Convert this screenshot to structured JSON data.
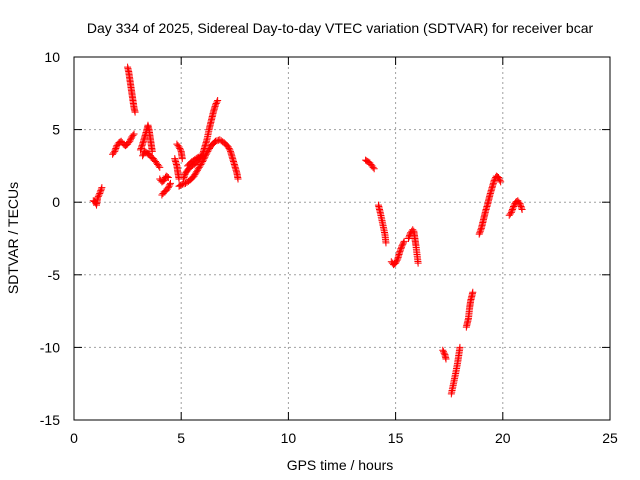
{
  "chart_data": {
    "type": "scatter",
    "title": "Day 334 of 2025, Sidereal Day-to-day VTEC variation (SDTVAR) for receiver bcar",
    "xlabel": "GPS time / hours",
    "ylabel": "SDTVAR / TECUs",
    "xlim": [
      0,
      25
    ],
    "ylim": [
      -15,
      10
    ],
    "xticks": [
      0,
      5,
      10,
      15,
      20,
      25
    ],
    "yticks": [
      -15,
      -10,
      -5,
      0,
      5,
      10
    ],
    "grid": true,
    "marker": "+",
    "series": [
      {
        "color": "#ff0000",
        "segments": [
          [
            [
              0.9,
              0.1
            ],
            [
              1.0,
              0.0
            ],
            [
              1.05,
              -0.2
            ],
            [
              1.1,
              0.3
            ],
            [
              1.2,
              0.6
            ],
            [
              1.3,
              1.0
            ]
          ],
          [
            [
              1.8,
              3.3
            ],
            [
              1.9,
              3.5
            ],
            [
              2.0,
              3.9
            ],
            [
              2.1,
              4.1
            ],
            [
              2.2,
              4.2
            ],
            [
              2.3,
              4.0
            ],
            [
              2.4,
              3.9
            ],
            [
              2.5,
              4.0
            ],
            [
              2.6,
              4.2
            ],
            [
              2.7,
              4.5
            ],
            [
              2.8,
              4.7
            ]
          ],
          [
            [
              2.5,
              9.3
            ],
            [
              2.55,
              9.0
            ],
            [
              2.6,
              8.5
            ],
            [
              2.65,
              8.0
            ],
            [
              2.7,
              7.5
            ],
            [
              2.75,
              7.0
            ],
            [
              2.8,
              6.5
            ],
            [
              2.85,
              6.2
            ]
          ],
          [
            [
              3.1,
              3.6
            ],
            [
              3.2,
              4.0
            ],
            [
              3.3,
              4.5
            ],
            [
              3.4,
              5.0
            ],
            [
              3.45,
              5.3
            ],
            [
              3.5,
              5.0
            ],
            [
              3.55,
              4.5
            ],
            [
              3.6,
              4.0
            ],
            [
              3.65,
              3.5
            ]
          ],
          [
            [
              3.2,
              3.2
            ],
            [
              3.3,
              3.5
            ],
            [
              3.4,
              3.4
            ],
            [
              3.5,
              3.3
            ],
            [
              3.6,
              3.1
            ],
            [
              3.7,
              3.0
            ],
            [
              3.8,
              2.8
            ],
            [
              3.9,
              2.6
            ],
            [
              4.0,
              2.4
            ]
          ],
          [
            [
              4.0,
              1.6
            ],
            [
              4.1,
              1.4
            ],
            [
              4.2,
              1.5
            ],
            [
              4.3,
              1.8
            ],
            [
              4.4,
              1.7
            ]
          ],
          [
            [
              4.1,
              0.5
            ],
            [
              4.2,
              0.7
            ],
            [
              4.3,
              0.8
            ],
            [
              4.4,
              1.0
            ],
            [
              4.5,
              1.3
            ]
          ],
          [
            [
              4.7,
              3.0
            ],
            [
              4.8,
              2.5
            ],
            [
              4.85,
              2.0
            ],
            [
              4.9,
              1.6
            ]
          ],
          [
            [
              4.8,
              4.0
            ],
            [
              4.9,
              3.8
            ],
            [
              5.0,
              3.5
            ],
            [
              5.05,
              3.0
            ]
          ],
          [
            [
              4.9,
              1.1
            ],
            [
              5.0,
              1.2
            ],
            [
              5.2,
              1.3
            ],
            [
              5.4,
              1.5
            ],
            [
              5.6,
              1.8
            ],
            [
              5.8,
              2.3
            ],
            [
              6.0,
              2.8
            ],
            [
              6.2,
              3.4
            ],
            [
              6.4,
              3.9
            ],
            [
              6.6,
              4.2
            ],
            [
              6.8,
              4.3
            ],
            [
              7.0,
              4.1
            ],
            [
              7.2,
              3.8
            ],
            [
              7.3,
              3.5
            ],
            [
              7.4,
              3.0
            ],
            [
              7.5,
              2.5
            ],
            [
              7.6,
              2.0
            ],
            [
              7.65,
              1.6
            ]
          ],
          [
            [
              5.1,
              1.6
            ],
            [
              5.2,
              2.0
            ],
            [
              5.4,
              2.4
            ],
            [
              5.6,
              2.6
            ],
            [
              5.8,
              2.9
            ],
            [
              6.0,
              3.3
            ],
            [
              6.1,
              3.8
            ],
            [
              6.2,
              4.3
            ],
            [
              6.3,
              5.0
            ],
            [
              6.4,
              5.6
            ],
            [
              6.5,
              6.2
            ],
            [
              6.6,
              6.7
            ],
            [
              6.7,
              7.0
            ]
          ],
          [
            [
              5.3,
              2.5
            ],
            [
              5.5,
              2.8
            ],
            [
              5.7,
              3.0
            ],
            [
              5.8,
              3.1
            ]
          ],
          [
            [
              13.6,
              2.9
            ],
            [
              13.7,
              2.8
            ],
            [
              13.8,
              2.7
            ],
            [
              13.9,
              2.5
            ],
            [
              14.0,
              2.3
            ]
          ],
          [
            [
              14.2,
              -0.2
            ],
            [
              14.3,
              -0.8
            ],
            [
              14.4,
              -1.5
            ],
            [
              14.5,
              -2.2
            ],
            [
              14.55,
              -2.8
            ]
          ],
          [
            [
              14.8,
              -4.1
            ],
            [
              14.9,
              -4.3
            ],
            [
              15.0,
              -4.2
            ],
            [
              15.1,
              -3.9
            ],
            [
              15.2,
              -3.4
            ],
            [
              15.3,
              -3.0
            ],
            [
              15.4,
              -2.7
            ]
          ],
          [
            [
              15.6,
              -2.5
            ],
            [
              15.7,
              -2.1
            ],
            [
              15.8,
              -1.9
            ],
            [
              15.85,
              -2.0
            ],
            [
              15.9,
              -2.5
            ],
            [
              15.95,
              -3.0
            ],
            [
              16.0,
              -3.6
            ],
            [
              16.05,
              -4.2
            ]
          ],
          [
            [
              17.2,
              -10.2
            ],
            [
              17.3,
              -10.5
            ],
            [
              17.35,
              -10.8
            ]
          ],
          [
            [
              17.6,
              -13.2
            ],
            [
              17.7,
              -12.5
            ],
            [
              17.8,
              -11.8
            ],
            [
              17.9,
              -11.0
            ],
            [
              18.0,
              -10.0
            ]
          ],
          [
            [
              18.3,
              -8.6
            ],
            [
              18.4,
              -8.0
            ],
            [
              18.45,
              -7.3
            ],
            [
              18.5,
              -6.8
            ],
            [
              18.6,
              -6.2
            ]
          ],
          [
            [
              18.9,
              -2.2
            ],
            [
              19.0,
              -1.8
            ],
            [
              19.1,
              -1.2
            ],
            [
              19.2,
              -0.6
            ],
            [
              19.3,
              -0.1
            ],
            [
              19.4,
              0.5
            ],
            [
              19.5,
              1.0
            ],
            [
              19.6,
              1.5
            ],
            [
              19.7,
              1.8
            ],
            [
              19.8,
              1.7
            ],
            [
              19.9,
              1.4
            ]
          ],
          [
            [
              20.3,
              -0.9
            ],
            [
              20.4,
              -0.7
            ],
            [
              20.5,
              -0.3
            ],
            [
              20.6,
              0.0
            ],
            [
              20.7,
              0.1
            ],
            [
              20.8,
              -0.1
            ],
            [
              20.9,
              -0.5
            ]
          ]
        ]
      }
    ]
  }
}
